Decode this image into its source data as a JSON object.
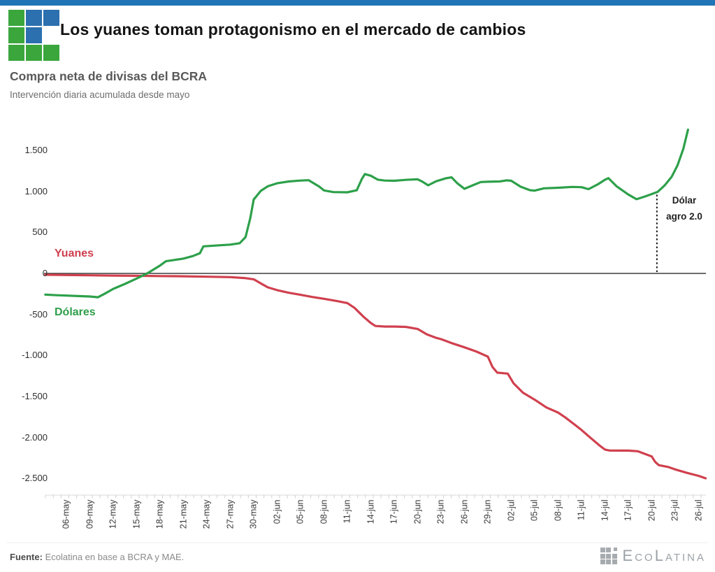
{
  "header": {
    "title": "Los yuanes toman protagonismo en el mercado de cambios",
    "logo": {
      "grid": [
        "g",
        "b",
        "b",
        "g",
        "b",
        "",
        "g",
        "g",
        "g"
      ],
      "green": "#3aa63c",
      "blue": "#2c70af"
    }
  },
  "chart": {
    "title": "Compra neta de divisas del BCRA",
    "subtitle": "Intervención diaria acumulada desde mayo",
    "annotation": {
      "line1": "Dólar",
      "line2": "agro 2.0"
    }
  },
  "chart_data": {
    "type": "line",
    "title": "Compra neta de divisas del BCRA",
    "subtitle": "Intervención diaria acumulada desde mayo",
    "grid": false,
    "legend_position": "inline-labels",
    "ylim": [
      -2700,
      1900
    ],
    "y_ticks": [
      1500,
      1000,
      500,
      0,
      -500,
      -1000,
      -1500,
      -2000,
      -2500
    ],
    "y_tick_labels": [
      "1.500",
      "1.000",
      "500",
      "0",
      "-500",
      "-1.000",
      "-1.500",
      "-2.000",
      "-2.500"
    ],
    "x_tick_labels": [
      "06-may",
      "09-may",
      "12-may",
      "15-may",
      "18-may",
      "21-may",
      "24-may",
      "27-may",
      "30-may",
      "02-jun",
      "05-jun",
      "08-jun",
      "11-jun",
      "14-jun",
      "17-jun",
      "20-jun",
      "23-jun",
      "26-jun",
      "29-jun",
      "02-jul",
      "05-jul",
      "08-jul",
      "11-jul",
      "14-jul",
      "17-jul",
      "20-jul",
      "23-jul",
      "26-jul"
    ],
    "series": [
      {
        "name": "Yuanes",
        "color": "#d0404e",
        "points": [
          [
            -0.9,
            -16
          ],
          [
            0,
            -20
          ],
          [
            1,
            -23
          ],
          [
            2,
            -26
          ],
          [
            3,
            -29
          ],
          [
            4,
            -32
          ],
          [
            5,
            -35
          ],
          [
            6,
            -40
          ],
          [
            7,
            -45
          ],
          [
            7.6,
            -56
          ],
          [
            8,
            -72
          ],
          [
            8.3,
            -121
          ],
          [
            8.6,
            -170
          ],
          [
            9,
            -204
          ],
          [
            9.5,
            -236
          ],
          [
            10,
            -261
          ],
          [
            10.5,
            -287
          ],
          [
            11,
            -309
          ],
          [
            11.5,
            -334
          ],
          [
            12,
            -361
          ],
          [
            12.3,
            -419
          ],
          [
            12.7,
            -531
          ],
          [
            13,
            -604
          ],
          [
            13.2,
            -641
          ],
          [
            13.6,
            -648
          ],
          [
            14,
            -648
          ],
          [
            14.5,
            -652
          ],
          [
            15,
            -677
          ],
          [
            15.4,
            -744
          ],
          [
            15.8,
            -786
          ],
          [
            16,
            -801
          ],
          [
            16.5,
            -854
          ],
          [
            17,
            -901
          ],
          [
            17.5,
            -951
          ],
          [
            18,
            -1014
          ],
          [
            18.2,
            -1141
          ],
          [
            18.4,
            -1209
          ],
          [
            18.85,
            -1221
          ],
          [
            19.1,
            -1341
          ],
          [
            19.5,
            -1454
          ],
          [
            20,
            -1539
          ],
          [
            20.5,
            -1634
          ],
          [
            21,
            -1696
          ],
          [
            21.3,
            -1754
          ],
          [
            21.7,
            -1841
          ],
          [
            22,
            -1908
          ],
          [
            22.4,
            -2008
          ],
          [
            22.8,
            -2104
          ],
          [
            23,
            -2147
          ],
          [
            23.2,
            -2159
          ],
          [
            24,
            -2160
          ],
          [
            24.4,
            -2167
          ],
          [
            24.7,
            -2199
          ],
          [
            25,
            -2231
          ],
          [
            25.15,
            -2299
          ],
          [
            25.3,
            -2337
          ],
          [
            25.7,
            -2359
          ],
          [
            26,
            -2389
          ],
          [
            26.5,
            -2431
          ],
          [
            27,
            -2467
          ],
          [
            27.3,
            -2497
          ]
        ]
      },
      {
        "name": "Dólares",
        "color": "#2da04a",
        "points": [
          [
            -0.9,
            -258
          ],
          [
            -0.4,
            -266
          ],
          [
            0,
            -270
          ],
          [
            0.6,
            -277
          ],
          [
            1,
            -281
          ],
          [
            1.35,
            -291
          ],
          [
            1.6,
            -253
          ],
          [
            2,
            -188
          ],
          [
            2.5,
            -128
          ],
          [
            3,
            -62
          ],
          [
            3.45,
            0
          ],
          [
            4,
            96
          ],
          [
            4.25,
            148
          ],
          [
            4.7,
            168
          ],
          [
            5,
            181
          ],
          [
            5.4,
            211
          ],
          [
            5.7,
            246
          ],
          [
            5.85,
            330
          ],
          [
            6.3,
            338
          ],
          [
            7,
            351
          ],
          [
            7.4,
            368
          ],
          [
            7.65,
            442
          ],
          [
            7.85,
            670
          ],
          [
            8,
            901
          ],
          [
            8.3,
            1006
          ],
          [
            8.6,
            1062
          ],
          [
            9,
            1099
          ],
          [
            9.5,
            1121
          ],
          [
            10,
            1132
          ],
          [
            10.35,
            1136
          ],
          [
            10.8,
            1058
          ],
          [
            11,
            1012
          ],
          [
            11.4,
            991
          ],
          [
            12,
            989
          ],
          [
            12.4,
            1013
          ],
          [
            12.62,
            1152
          ],
          [
            12.75,
            1211
          ],
          [
            13,
            1191
          ],
          [
            13.3,
            1143
          ],
          [
            13.6,
            1132
          ],
          [
            14,
            1129
          ],
          [
            14.5,
            1140
          ],
          [
            15,
            1147
          ],
          [
            15.2,
            1119
          ],
          [
            15.45,
            1074
          ],
          [
            15.8,
            1124
          ],
          [
            16.2,
            1159
          ],
          [
            16.45,
            1171
          ],
          [
            16.7,
            1098
          ],
          [
            17,
            1031
          ],
          [
            17.4,
            1079
          ],
          [
            17.7,
            1114
          ],
          [
            18,
            1117
          ],
          [
            18.5,
            1121
          ],
          [
            18.8,
            1134
          ],
          [
            19,
            1129
          ],
          [
            19.4,
            1057
          ],
          [
            19.8,
            1014
          ],
          [
            20,
            1009
          ],
          [
            20.4,
            1037
          ],
          [
            21,
            1044
          ],
          [
            21.6,
            1054
          ],
          [
            22,
            1051
          ],
          [
            22.3,
            1027
          ],
          [
            22.7,
            1086
          ],
          [
            23,
            1141
          ],
          [
            23.15,
            1161
          ],
          [
            23.5,
            1061
          ],
          [
            23.8,
            1001
          ],
          [
            24,
            961
          ],
          [
            24.35,
            904
          ],
          [
            24.7,
            937
          ],
          [
            25,
            967
          ],
          [
            25.25,
            994
          ],
          [
            25.55,
            1072
          ],
          [
            25.85,
            1178
          ],
          [
            26.1,
            1318
          ],
          [
            26.35,
            1519
          ],
          [
            26.55,
            1752
          ]
        ]
      }
    ],
    "annotation": {
      "label": "Dólar agro 2.0",
      "x_index": 25.22,
      "y_top_value": 960,
      "marks_value_on_axis": 0
    }
  },
  "footer": {
    "source_label": "Fuente:",
    "source_text": " Ecolatina en base a BCRA y MAE.",
    "brand": "EcoLatina"
  }
}
